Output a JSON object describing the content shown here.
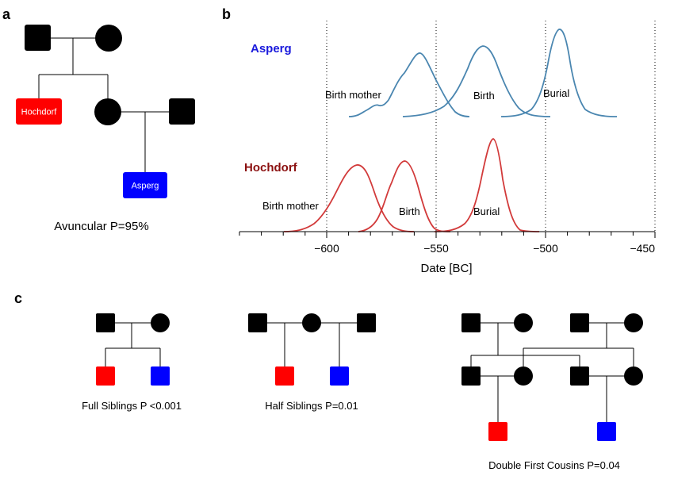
{
  "panel_a": {
    "letter": "a",
    "hochdorf_label": "Hochdorf",
    "asperg_label": "Asperg",
    "caption": "Avuncular P=95%"
  },
  "panel_b": {
    "letter": "b",
    "asperg_title": "Asperg",
    "hochdorf_title": "Hochdorf",
    "asperg_color": "#4a86b0",
    "hochdorf_color": "#d23a3a",
    "asperg_title_color": "#1a1adc",
    "hochdorf_title_color": "#8b1010",
    "asperg_labels": {
      "birth_mother": "Birth mother",
      "birth": "Birth",
      "burial": "Burial"
    },
    "hochdorf_labels": {
      "birth_mother": "Birth mother",
      "birth": "Birth",
      "burial": "Burial"
    },
    "xlabel": "Date [BC]",
    "tick_labels": [
      "−600",
      "−550",
      "−500",
      "−450"
    ]
  },
  "chart_data": {
    "type": "area",
    "xlabel": "Date [BC]",
    "xlim": [
      -650,
      -450
    ],
    "xticks": [
      -600,
      -550,
      -500,
      -450
    ],
    "grid_dotted_at": [
      -600,
      -550,
      -500,
      -450
    ],
    "series": [
      {
        "name": "Asperg",
        "curves": [
          {
            "label": "Birth mother",
            "mode": -558,
            "range": [
              -590,
              -525
            ],
            "shape": "left-shoulder"
          },
          {
            "label": "Birth",
            "mode": -529,
            "range": [
              -550,
              -505
            ]
          },
          {
            "label": "Burial",
            "mode": -494,
            "range": [
              -520,
              -468
            ]
          }
        ]
      },
      {
        "name": "Hochdorf",
        "curves": [
          {
            "label": "Birth mother",
            "mode": -585,
            "range": [
              -615,
              -560
            ]
          },
          {
            "label": "Birth",
            "mode": -564,
            "range": [
              -585,
              -535
            ]
          },
          {
            "label": "Burial",
            "mode": -524,
            "range": [
              -550,
              -505
            ]
          }
        ]
      }
    ]
  },
  "panel_c": {
    "letter": "c",
    "full_siblings_caption": "Full Siblings P <0.001",
    "half_siblings_caption": "Half Siblings P=0.01",
    "double_cousins_caption": "Double First Cousins P=0.04"
  },
  "colors": {
    "red": "#ff0000",
    "blue": "#0000ff",
    "black": "#000000"
  }
}
